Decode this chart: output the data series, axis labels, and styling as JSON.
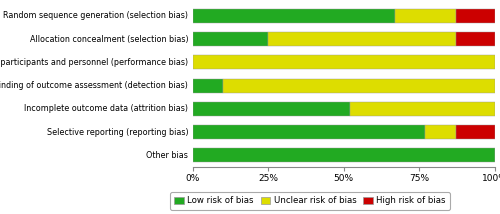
{
  "categories": [
    "Random sequence generation (selection bias)",
    "Allocation concealment (selection bias)",
    "Blinding of participants and personnel (performance bias)",
    "Blinding of outcome assessment (detection bias)",
    "Incomplete outcome data (attrition bias)",
    "Selective reporting (reporting bias)",
    "Other bias"
  ],
  "low_risk": [
    67,
    25,
    0,
    10,
    52,
    77,
    100
  ],
  "unclear_risk": [
    20,
    62,
    100,
    90,
    48,
    10,
    0
  ],
  "high_risk": [
    13,
    13,
    0,
    0,
    0,
    13,
    0
  ],
  "colors": {
    "low": "#22aa22",
    "unclear": "#dddd00",
    "high": "#cc0000"
  },
  "legend_labels": [
    "Low risk of bias",
    "Unclear risk of bias",
    "High risk of bias"
  ],
  "xlabel_ticks": [
    "0%",
    "25%",
    "50%",
    "75%",
    "100%"
  ],
  "bar_height": 0.6,
  "background_color": "#ffffff"
}
